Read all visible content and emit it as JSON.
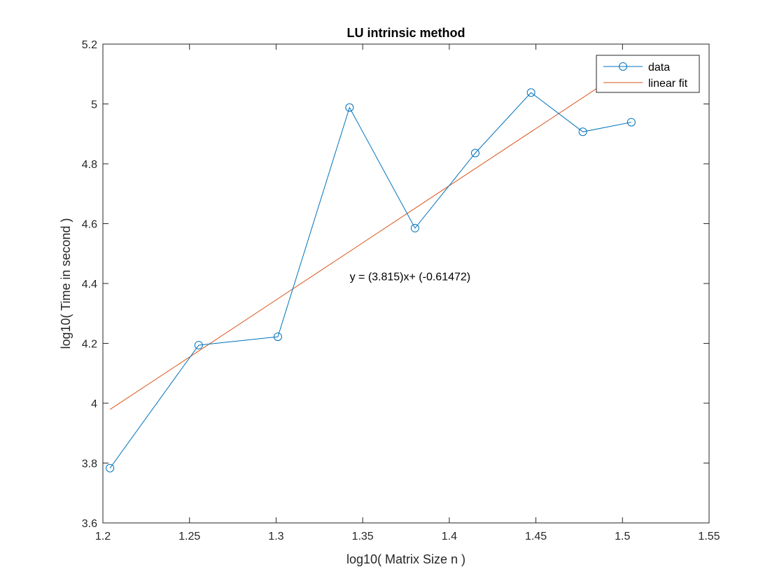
{
  "chart_data": {
    "type": "line",
    "title": "LU intrinsic method",
    "xlabel": "log10( Matrix Size n )",
    "ylabel": "log10( Time in second )",
    "xlim": [
      1.2,
      1.55
    ],
    "ylim": [
      3.6,
      5.2
    ],
    "xticks": [
      1.2,
      1.25,
      1.3,
      1.35,
      1.4,
      1.45,
      1.5,
      1.55
    ],
    "xtick_labels": [
      "1.2",
      "1.25",
      "1.3",
      "1.35",
      "1.4",
      "1.45",
      "1.5",
      "1.55"
    ],
    "yticks": [
      3.6,
      3.8,
      4.0,
      4.2,
      4.4,
      4.6,
      4.8,
      5.0,
      5.2
    ],
    "ytick_labels": [
      "3.6",
      "3.8",
      "4",
      "4.2",
      "4.4",
      "4.6",
      "4.8",
      "5",
      "5.2"
    ],
    "grid": false,
    "legend_position": "top-right",
    "series": [
      {
        "name": "data",
        "color": "#0072BD",
        "marker": "circle",
        "x": [
          1.2041,
          1.2553,
          1.301,
          1.3424,
          1.3802,
          1.415,
          1.4472,
          1.4771,
          1.5051
        ],
        "y": [
          3.783,
          4.194,
          4.222,
          4.988,
          4.585,
          4.836,
          5.038,
          4.907,
          4.939
        ]
      },
      {
        "name": "linear fit",
        "color": "#D95319",
        "marker": "none",
        "x": [
          1.2041,
          1.5051
        ],
        "y": [
          3.979,
          5.128
        ]
      }
    ],
    "annotations": [
      {
        "text": "y = (3.815)x+ (-0.61472)",
        "x": 1.3425,
        "y": 4.41
      }
    ]
  }
}
